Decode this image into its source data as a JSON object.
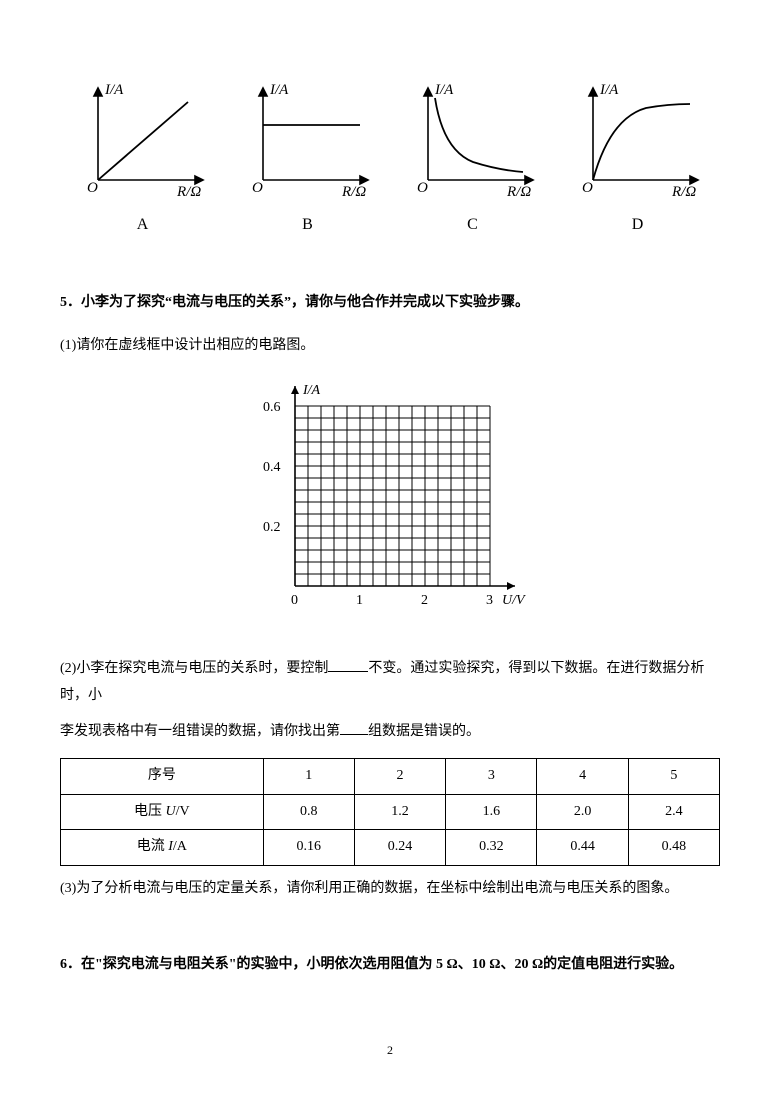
{
  "colors": {
    "stroke": "#000000",
    "bg": "#ffffff"
  },
  "topGraphs": {
    "axis_y_label": "I/A",
    "axis_x_label": "R/Ω",
    "origin_label": "O",
    "labels": [
      "A",
      "B",
      "C",
      "D"
    ],
    "stroke_width": 1.6,
    "curve_stroke_width": 1.8
  },
  "q5": {
    "heading": "5．小李为了探究“电流与电压的关系”，请你与他合作并完成以下实验步骤。",
    "sub1": "(1)请你在虚线框中设计出相应的电路图。",
    "grid": {
      "y_label": "I/A",
      "x_label": "U/V",
      "x_ticks": [
        "0",
        "1",
        "2",
        "3"
      ],
      "y_ticks": [
        "0.2",
        "0.4",
        "0.6"
      ],
      "x_major_count": 3,
      "y_major_count": 3,
      "minor_per_major": 5,
      "grid_stroke_width": 1,
      "axis_stroke_width": 1.6,
      "tick_fontsize": 14
    },
    "sub2_a": "(2)小李在探究电流与电压的关系时，要控制",
    "sub2_b": "不变。通过实验探究，得到以下数据。在进行数据分析时，小",
    "sub2_c": "李发现表格中有一组错误的数据，请你找出第",
    "sub2_d": "组数据是错误的。",
    "table": {
      "headers": [
        "序号",
        "1",
        "2",
        "3",
        "4",
        "5"
      ],
      "rows": [
        {
          "label": "电压 U/V",
          "values": [
            "0.8",
            "1.2",
            "1.6",
            "2.0",
            "2.4"
          ]
        },
        {
          "label": "电流 I/A",
          "values": [
            "0.16",
            "0.24",
            "0.32",
            "0.44",
            "0.48"
          ]
        }
      ]
    },
    "sub3": "(3)为了分析电流与电压的定量关系，请你利用正确的数据，在坐标中绘制出电流与电压关系的图象。"
  },
  "q6": {
    "heading": "6．在\"探究电流与电阻关系\"的实验中，小明依次选用阻值为 5 Ω、10 Ω、20 Ω的定值电阻进行实验。"
  },
  "page_number": "2"
}
